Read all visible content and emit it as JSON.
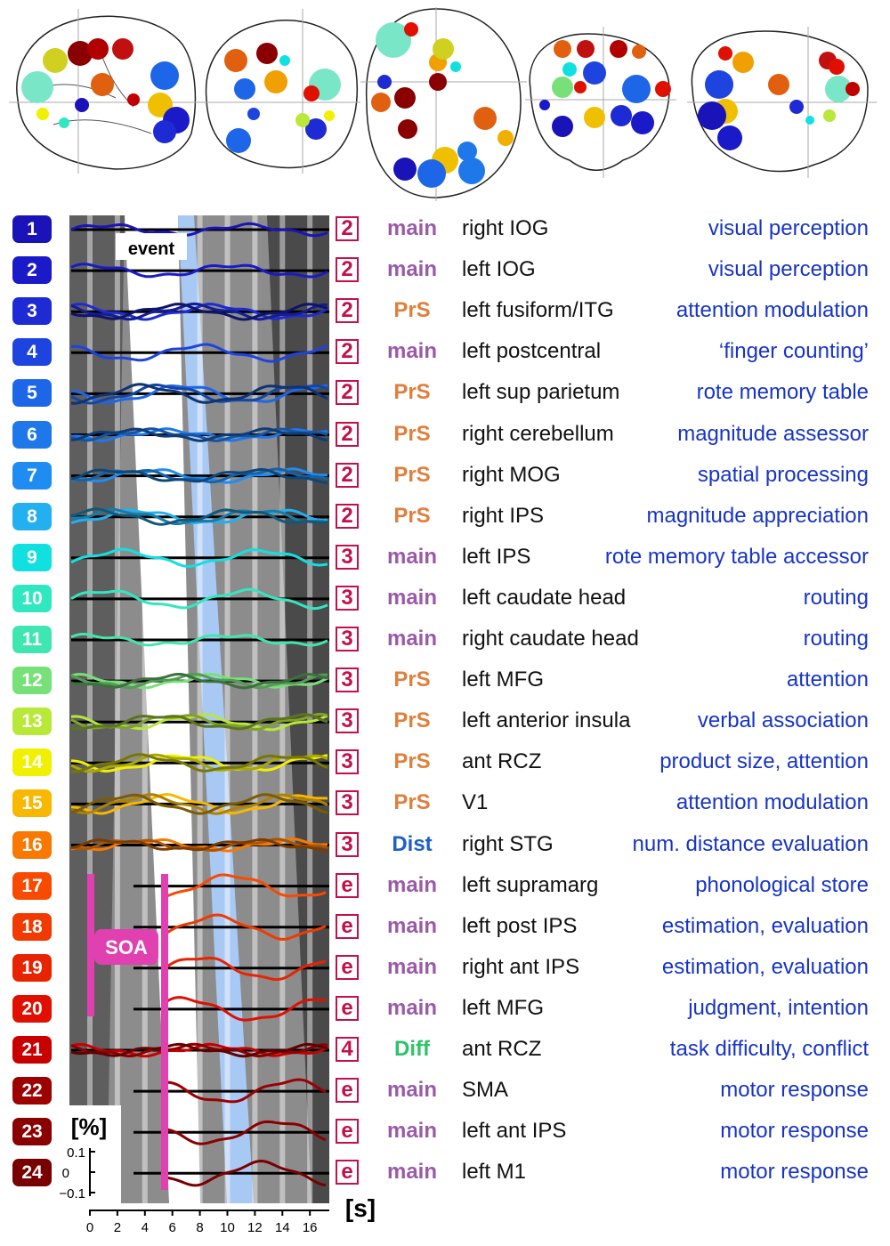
{
  "labels": {
    "event": "event",
    "soa": "SOA",
    "percent": "[%]",
    "seconds": "[s]"
  },
  "y_ticks": [
    "0.1",
    "0",
    "−0.1"
  ],
  "x_ticks": [
    "0",
    "2",
    "4",
    "6",
    "8",
    "10",
    "12",
    "14",
    "16"
  ],
  "colors": {
    "box": "#c4104a",
    "main": "#9a5aa8",
    "PrS": "#e07f3c",
    "Dist": "#1f5fc8",
    "Diff": "#2ec46a",
    "function": "#1734c8",
    "soa": "#e040b0",
    "blue_band": "#a9c9f5"
  },
  "rows": [
    {
      "n": "1",
      "color": "#1a14b8",
      "comp": "2",
      "type": "main",
      "region": "right IOG",
      "func": "visual perception"
    },
    {
      "n": "2",
      "color": "#1a1ac8",
      "comp": "2",
      "type": "main",
      "region": "left IOG",
      "func": "visual perception"
    },
    {
      "n": "3",
      "color": "#1e2ad4",
      "comp": "2",
      "type": "PrS",
      "region": "left fusiform/ITG",
      "func": "attention modulation"
    },
    {
      "n": "4",
      "color": "#1e44e0",
      "comp": "2",
      "type": "main",
      "region": "left postcentral",
      "func": "‘finger counting’"
    },
    {
      "n": "5",
      "color": "#1e66e8",
      "comp": "2",
      "type": "PrS",
      "region": "left sup parietum",
      "func": "rote memory table"
    },
    {
      "n": "6",
      "color": "#1e78ea",
      "comp": "2",
      "type": "PrS",
      "region": "right cerebellum",
      "func": "magnitude assessor"
    },
    {
      "n": "7",
      "color": "#1e8cf0",
      "comp": "2",
      "type": "PrS",
      "region": "right MOG",
      "func": "spatial processing"
    },
    {
      "n": "8",
      "color": "#22b0f0",
      "comp": "2",
      "type": "PrS",
      "region": "right IPS",
      "func": "magnitude appreciation"
    },
    {
      "n": "9",
      "color": "#10e0e0",
      "comp": "3",
      "type": "main",
      "region": "left IPS",
      "func": "rote memory table accessor"
    },
    {
      "n": "10",
      "color": "#30e8c0",
      "comp": "3",
      "type": "main",
      "region": "left caudate head",
      "func": "routing"
    },
    {
      "n": "11",
      "color": "#40e6b0",
      "comp": "3",
      "type": "main",
      "region": "right caudate head",
      "func": "routing"
    },
    {
      "n": "12",
      "color": "#78e078",
      "comp": "3",
      "type": "PrS",
      "region": "left MFG",
      "func": "attention"
    },
    {
      "n": "13",
      "color": "#b8e838",
      "comp": "3",
      "type": "PrS",
      "region": "left anterior insula",
      "func": "verbal association"
    },
    {
      "n": "14",
      "color": "#f0f000",
      "comp": "3",
      "type": "PrS",
      "region": "ant RCZ",
      "func": "product size, attention"
    },
    {
      "n": "15",
      "color": "#f8b800",
      "comp": "3",
      "type": "PrS",
      "region": "V1",
      "func": "attention modulation"
    },
    {
      "n": "16",
      "color": "#f87800",
      "comp": "3",
      "type": "Dist",
      "region": "right STG",
      "func": "num. distance evaluation"
    },
    {
      "n": "17",
      "color": "#f84a00",
      "comp": "e",
      "type": "main",
      "region": "left supramarg",
      "func": "phonological store"
    },
    {
      "n": "18",
      "color": "#f03a00",
      "comp": "e",
      "type": "main",
      "region": "left post IPS",
      "func": "estimation, evaluation"
    },
    {
      "n": "19",
      "color": "#e82400",
      "comp": "e",
      "type": "main",
      "region": "right ant IPS",
      "func": "estimation, evaluation"
    },
    {
      "n": "20",
      "color": "#e01000",
      "comp": "e",
      "type": "main",
      "region": "left MFG",
      "func": "judgment, intention"
    },
    {
      "n": "21",
      "color": "#c80000",
      "comp": "4",
      "type": "Diff",
      "region": "ant RCZ",
      "func": "task difficulty, conflict"
    },
    {
      "n": "22",
      "color": "#9c0000",
      "comp": "e",
      "type": "main",
      "region": "SMA",
      "func": "motor response"
    },
    {
      "n": "23",
      "color": "#8a0000",
      "comp": "e",
      "type": "main",
      "region": "left ant IPS",
      "func": "motor response"
    },
    {
      "n": "24",
      "color": "#780000",
      "comp": "e",
      "type": "main",
      "region": "left M1",
      "func": "motor response"
    }
  ]
}
